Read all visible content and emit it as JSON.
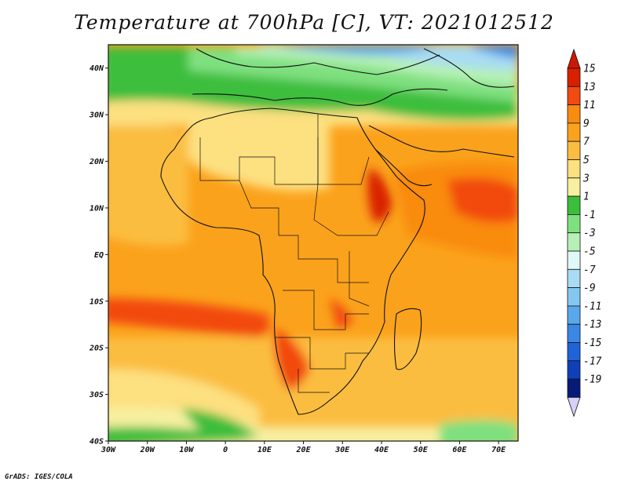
{
  "title": "Temperature at 700hPa [C], VT: 2021012512",
  "credit": "GrADS: IGES/COLA",
  "map": {
    "region": "Africa",
    "lon_range": [
      -30,
      75
    ],
    "lat_range": [
      -40,
      45
    ],
    "lon_ticks": [
      {
        "value": -30,
        "label": "30W"
      },
      {
        "value": -20,
        "label": "20W"
      },
      {
        "value": -10,
        "label": "10W"
      },
      {
        "value": 0,
        "label": "0"
      },
      {
        "value": 10,
        "label": "10E"
      },
      {
        "value": 20,
        "label": "20E"
      },
      {
        "value": 30,
        "label": "30E"
      },
      {
        "value": 40,
        "label": "40E"
      },
      {
        "value": 50,
        "label": "50E"
      },
      {
        "value": 60,
        "label": "60E"
      },
      {
        "value": 70,
        "label": "70E"
      }
    ],
    "lat_ticks": [
      {
        "value": 40,
        "label": "40N"
      },
      {
        "value": 30,
        "label": "30N"
      },
      {
        "value": 20,
        "label": "20N"
      },
      {
        "value": 10,
        "label": "10N"
      },
      {
        "value": 0,
        "label": "EQ"
      },
      {
        "value": -10,
        "label": "10S"
      },
      {
        "value": -20,
        "label": "20S"
      },
      {
        "value": -30,
        "label": "30S"
      },
      {
        "value": -40,
        "label": "40S"
      }
    ]
  },
  "colorbar": {
    "levels": [
      {
        "label": "15",
        "color": "#d92000"
      },
      {
        "label": "13",
        "color": "#f24a10"
      },
      {
        "label": "11",
        "color": "#f98b10"
      },
      {
        "label": "9",
        "color": "#fba21c"
      },
      {
        "label": "7",
        "color": "#fbbd40"
      },
      {
        "label": "5",
        "color": "#fde080"
      },
      {
        "label": "3",
        "color": "#f6f0a0"
      },
      {
        "label": "1",
        "color": "#3cbe3c"
      },
      {
        "label": "-1",
        "color": "#7fe07f"
      },
      {
        "label": "-3",
        "color": "#b6f0b6"
      },
      {
        "label": "-5",
        "color": "#e0f8f8"
      },
      {
        "label": "-7",
        "color": "#a8dcf4"
      },
      {
        "label": "-9",
        "color": "#84c8f0"
      },
      {
        "label": "-11",
        "color": "#5aa8ec"
      },
      {
        "label": "-13",
        "color": "#3a88e4"
      },
      {
        "label": "-15",
        "color": "#1e64d8"
      },
      {
        "label": "-17",
        "color": "#1040b8"
      },
      {
        "label": "-19",
        "color": "#081a78"
      }
    ],
    "top_arrow_color": "#cc1800",
    "bottom_arrow_color": "#d8d0f8"
  }
}
